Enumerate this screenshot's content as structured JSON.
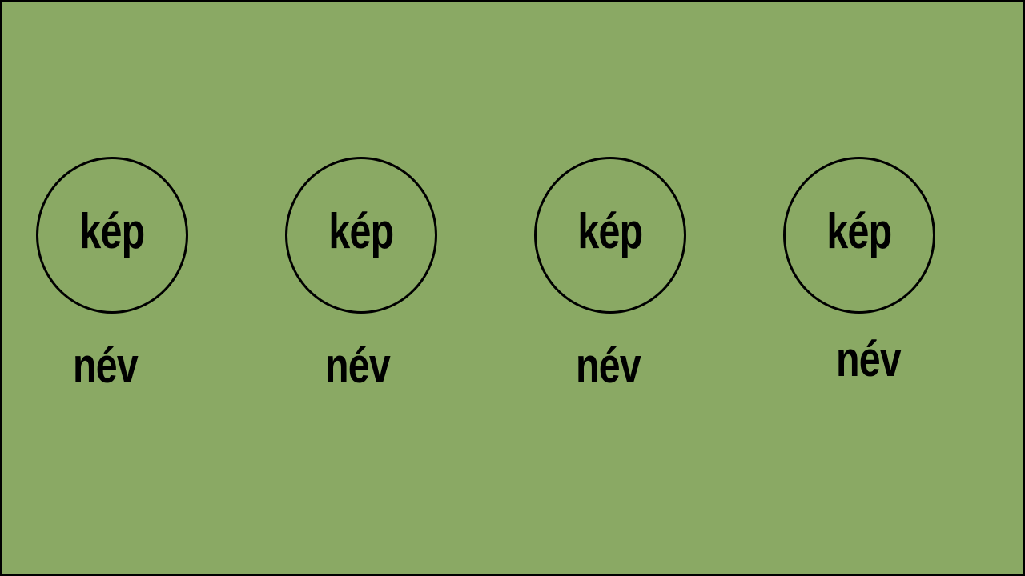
{
  "background_color": "#8aa964",
  "border_color": "#000000",
  "items": [
    {
      "image_label": "kép",
      "name_label": "név"
    },
    {
      "image_label": "kép",
      "name_label": "név"
    },
    {
      "image_label": "kép",
      "name_label": "név"
    },
    {
      "image_label": "kép",
      "name_label": "név"
    }
  ]
}
